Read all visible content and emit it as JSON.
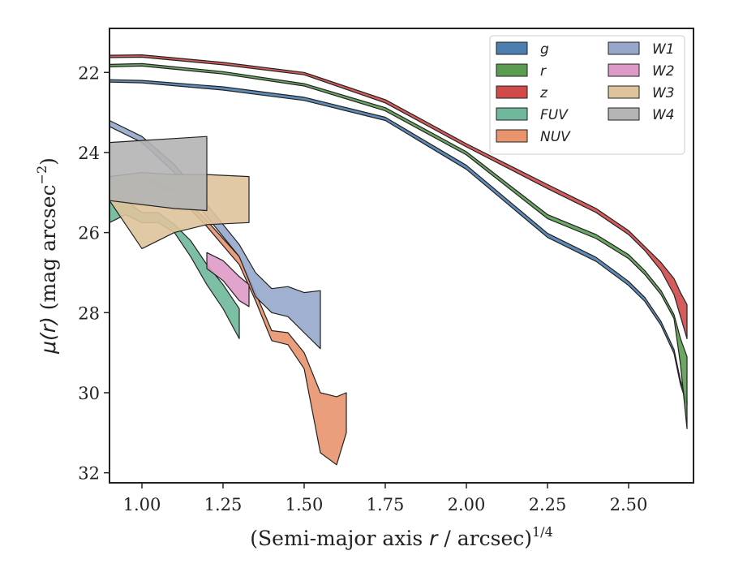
{
  "chart_data": {
    "type": "area",
    "xlabel": "(Semi-major axis r / arcsec)^{1/4}",
    "xlabel_parts": {
      "pre": "(Semi-major axis ",
      "var": "r",
      "post": " / arcsec)",
      "sup": "1/4"
    },
    "ylabel": "μ(r) (mag arcsec^-2)",
    "ylabel_parts": {
      "mu": "μ(",
      "var": "r",
      "close": ")",
      "unit": " (mag arcsec",
      "sup": "−2",
      "end": ")"
    },
    "xlim": [
      0.9,
      2.7
    ],
    "ylim": [
      32.25,
      20.9
    ],
    "y_inverted": true,
    "xticks": [
      1.0,
      1.25,
      1.5,
      1.75,
      2.0,
      2.25,
      2.5
    ],
    "xtick_labels": [
      "1.00",
      "1.25",
      "1.50",
      "1.75",
      "2.00",
      "2.25",
      "2.50"
    ],
    "yticks": [
      22,
      24,
      26,
      28,
      30,
      32
    ],
    "ytick_labels": [
      "22",
      "24",
      "26",
      "28",
      "30",
      "32"
    ],
    "grid": false,
    "legend_position": "top-right",
    "legend_columns": 2,
    "series": [
      {
        "name": "g",
        "color": "#4c7fb0",
        "x": [
          0.9,
          1.0,
          1.25,
          1.5,
          1.75,
          2.0,
          2.25,
          2.4,
          2.5,
          2.55,
          2.6,
          2.64,
          2.66,
          2.68
        ],
        "y_upper": [
          22.18,
          22.2,
          22.36,
          22.62,
          23.12,
          24.32,
          26.02,
          26.62,
          27.22,
          27.62,
          28.22,
          28.92,
          29.7,
          30.2
        ],
        "y_lower": [
          22.24,
          22.26,
          22.44,
          22.7,
          23.2,
          24.42,
          26.12,
          26.72,
          27.32,
          27.72,
          28.32,
          29.02,
          29.8,
          30.3
        ]
      },
      {
        "name": "r",
        "color": "#5a9d52",
        "x": [
          0.9,
          1.0,
          1.25,
          1.5,
          1.75,
          2.0,
          2.25,
          2.4,
          2.5,
          2.55,
          2.6,
          2.64,
          2.66,
          2.68
        ],
        "y_upper": [
          21.8,
          21.78,
          21.98,
          22.28,
          22.88,
          23.98,
          25.55,
          26.05,
          26.55,
          26.95,
          27.45,
          28.05,
          28.65,
          29.1
        ],
        "y_lower": [
          21.86,
          21.84,
          22.04,
          22.34,
          22.96,
          24.06,
          25.65,
          26.15,
          26.65,
          27.05,
          27.55,
          28.15,
          29.3,
          30.9
        ]
      },
      {
        "name": "z",
        "color": "#d04a4a",
        "x": [
          0.9,
          1.0,
          1.25,
          1.5,
          1.75,
          2.0,
          2.25,
          2.4,
          2.5,
          2.55,
          2.6,
          2.64,
          2.66,
          2.68
        ],
        "y_upper": [
          21.57,
          21.56,
          21.75,
          22.0,
          22.68,
          23.78,
          24.8,
          25.4,
          25.95,
          26.35,
          26.75,
          27.15,
          27.5,
          27.8
        ],
        "y_lower": [
          21.63,
          21.62,
          21.81,
          22.06,
          22.76,
          23.86,
          24.9,
          25.5,
          26.05,
          26.45,
          26.95,
          27.55,
          28.1,
          28.65
        ]
      },
      {
        "name": "FUV",
        "color": "#6fb89b",
        "x": [
          0.9,
          0.95,
          1.0,
          1.05,
          1.1,
          1.15,
          1.2,
          1.25,
          1.3
        ],
        "y_upper": [
          25.2,
          25.2,
          25.5,
          25.5,
          25.8,
          26.2,
          26.8,
          27.3,
          27.9
        ],
        "y_lower": [
          25.75,
          25.55,
          25.75,
          25.75,
          26.0,
          26.6,
          27.3,
          27.9,
          28.65
        ]
      },
      {
        "name": "NUV",
        "color": "#e8946d",
        "x": [
          1.0,
          1.1,
          1.2,
          1.3,
          1.35,
          1.4,
          1.45,
          1.5,
          1.55,
          1.6,
          1.63
        ],
        "y_upper": [
          24.6,
          24.9,
          25.7,
          26.6,
          27.5,
          28.45,
          28.5,
          29.0,
          30.0,
          30.1,
          30.0
        ],
        "y_lower": [
          24.7,
          25.0,
          25.85,
          26.8,
          27.7,
          28.7,
          28.8,
          29.4,
          31.5,
          31.8,
          31.0
        ]
      },
      {
        "name": "W1",
        "color": "#96a7cb",
        "x": [
          0.9,
          1.0,
          1.1,
          1.2,
          1.3,
          1.35,
          1.4,
          1.45,
          1.5,
          1.55
        ],
        "y_upper": [
          23.2,
          23.6,
          24.3,
          25.3,
          26.3,
          27.0,
          27.4,
          27.35,
          27.5,
          27.45
        ],
        "y_lower": [
          23.35,
          23.75,
          24.5,
          25.6,
          26.6,
          27.6,
          28.0,
          28.1,
          28.5,
          28.9
        ]
      },
      {
        "name": "W2",
        "color": "#dd9ac8",
        "x": [
          1.2,
          1.25,
          1.3,
          1.33
        ],
        "y_upper": [
          26.5,
          26.7,
          27.1,
          27.3
        ],
        "y_lower": [
          26.9,
          27.2,
          27.7,
          27.85
        ]
      },
      {
        "name": "W3",
        "color": "#dfc39c",
        "x": [
          0.9,
          1.0,
          1.1,
          1.2,
          1.33
        ],
        "y_upper": [
          24.6,
          24.5,
          24.55,
          24.55,
          24.6
        ],
        "y_lower": [
          25.2,
          26.4,
          26.0,
          25.8,
          25.75
        ]
      },
      {
        "name": "W4",
        "color": "#b4b4b4",
        "x": [
          0.9,
          1.0,
          1.1,
          1.2
        ],
        "y_upper": [
          23.75,
          23.7,
          23.65,
          23.6
        ],
        "y_lower": [
          25.2,
          25.3,
          25.4,
          25.45
        ]
      }
    ]
  }
}
